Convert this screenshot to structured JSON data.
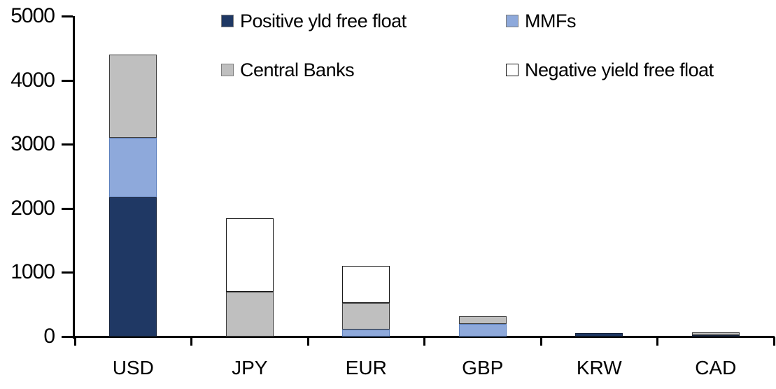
{
  "chart_data": {
    "type": "bar",
    "stacked": true,
    "title": "",
    "xlabel": "",
    "ylabel": "",
    "categories": [
      "USD",
      "JPY",
      "EUR",
      "GBP",
      "KRW",
      "CAD"
    ],
    "series": [
      {
        "name": "Positive yld free float",
        "color": "#1f3864",
        "border": "#16233c",
        "values": [
          2170,
          0,
          0,
          0,
          50,
          25
        ]
      },
      {
        "name": "MMFs",
        "color": "#8ea9db",
        "border": "#5b7fbd",
        "values": [
          930,
          0,
          110,
          200,
          0,
          0
        ]
      },
      {
        "name": "Central Banks",
        "color": "#bfbfbf",
        "border": "#3f3f3f",
        "values": [
          1300,
          700,
          410,
          120,
          0,
          40
        ]
      },
      {
        "name": "Negative yield free float",
        "color": "#ffffff",
        "border": "#1a1a1a",
        "values": [
          0,
          1150,
          580,
          0,
          0,
          0
        ]
      }
    ],
    "totals": [
      4400,
      1850,
      1100,
      320,
      50,
      65
    ],
    "ylim": [
      0,
      5000
    ],
    "ytick_step": 1000,
    "yticks": [
      "0",
      "1000",
      "2000",
      "3000",
      "4000",
      "5000"
    ],
    "grid": false,
    "legend_position": "top-inside-two-columns",
    "axis_color": "#000000",
    "background_color": "#ffffff"
  }
}
